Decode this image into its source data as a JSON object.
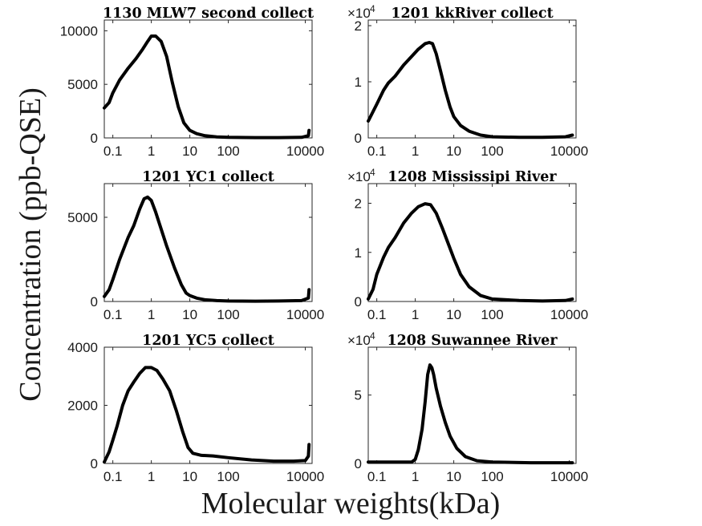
{
  "figure": {
    "ylabel": "Concentration (ppb-QSE)",
    "xlabel": "Molecular weights(kDa)"
  },
  "chart_data": [
    {
      "type": "line",
      "title": "1130 MLW7 second collect",
      "x_scale": "log",
      "xlim": [
        0.06,
        15000
      ],
      "ylim": [
        0,
        11000
      ],
      "x_ticks": [
        0.1,
        1,
        10,
        100,
        10000
      ],
      "x_tick_labels": [
        "0.1",
        "1",
        "10",
        "100",
        "10000"
      ],
      "y_ticks": [
        0,
        5000,
        10000
      ],
      "y_tick_labels": [
        "0",
        "5000",
        "10000"
      ],
      "y_multiplier": "",
      "color": "#000000",
      "x": [
        0.06,
        0.08,
        0.1,
        0.15,
        0.25,
        0.4,
        0.6,
        0.8,
        1.0,
        1.3,
        1.8,
        2.5,
        3.5,
        5,
        7,
        10,
        15,
        25,
        50,
        100,
        500,
        2000,
        8000,
        12000,
        12500
      ],
      "y": [
        2800,
        3300,
        4200,
        5400,
        6500,
        7400,
        8300,
        9000,
        9500,
        9500,
        9000,
        7600,
        5200,
        2900,
        1400,
        700,
        400,
        200,
        100,
        50,
        30,
        30,
        50,
        200,
        700
      ]
    },
    {
      "type": "line",
      "title": "1201 kkRiver collect",
      "x_scale": "log",
      "xlim": [
        0.06,
        15000
      ],
      "ylim": [
        0,
        2.1
      ],
      "x_ticks": [
        0.1,
        1,
        10,
        100,
        10000
      ],
      "x_tick_labels": [
        "0.1",
        "1",
        "10",
        "100",
        "10000"
      ],
      "y_ticks": [
        0,
        1,
        2
      ],
      "y_tick_labels": [
        "0",
        "1",
        "2"
      ],
      "y_multiplier": "×10",
      "y_multiplier_exp": "4",
      "color": "#000000",
      "x": [
        0.06,
        0.1,
        0.15,
        0.2,
        0.3,
        0.5,
        0.8,
        1.2,
        1.8,
        2.3,
        2.8,
        3.5,
        4.5,
        6,
        8,
        10,
        15,
        25,
        50,
        100,
        500,
        2000,
        8000,
        12000
      ],
      "y": [
        0.3,
        0.6,
        0.85,
        0.98,
        1.1,
        1.3,
        1.45,
        1.58,
        1.68,
        1.7,
        1.68,
        1.5,
        1.2,
        0.85,
        0.55,
        0.38,
        0.22,
        0.12,
        0.05,
        0.02,
        0.01,
        0.01,
        0.02,
        0.05
      ]
    },
    {
      "type": "line",
      "title": "1201 YC1 collect",
      "x_scale": "log",
      "xlim": [
        0.06,
        15000
      ],
      "ylim": [
        0,
        7000
      ],
      "x_ticks": [
        0.1,
        1,
        10,
        100,
        10000
      ],
      "x_tick_labels": [
        "0.1",
        "1",
        "10",
        "100",
        "10000"
      ],
      "y_ticks": [
        0,
        5000
      ],
      "y_tick_labels": [
        "0",
        "5000"
      ],
      "y_multiplier": "",
      "color": "#000000",
      "x": [
        0.06,
        0.08,
        0.1,
        0.15,
        0.25,
        0.35,
        0.5,
        0.65,
        0.8,
        1.0,
        1.3,
        1.8,
        2.5,
        4,
        6,
        8,
        10,
        15,
        25,
        50,
        100,
        500,
        2000,
        8000,
        12000,
        12500
      ],
      "y": [
        300,
        700,
        1300,
        2500,
        3800,
        4500,
        5500,
        6100,
        6200,
        6000,
        5300,
        4300,
        3300,
        2000,
        1000,
        500,
        350,
        200,
        100,
        50,
        30,
        20,
        30,
        50,
        200,
        700
      ]
    },
    {
      "type": "line",
      "title": "1208 Mississipi River",
      "x_scale": "log",
      "xlim": [
        0.06,
        15000
      ],
      "ylim": [
        0,
        2.4
      ],
      "x_ticks": [
        0.1,
        1,
        10,
        100,
        10000
      ],
      "x_tick_labels": [
        "0.1",
        "1",
        "10",
        "100",
        "10000"
      ],
      "y_ticks": [
        0,
        1,
        2
      ],
      "y_tick_labels": [
        "0",
        "1",
        "2"
      ],
      "y_multiplier": "×10",
      "y_multiplier_exp": "4",
      "color": "#000000",
      "x": [
        0.06,
        0.08,
        0.1,
        0.15,
        0.2,
        0.3,
        0.5,
        0.8,
        1.2,
        1.8,
        2.5,
        3.5,
        5,
        7,
        10,
        15,
        25,
        50,
        100,
        500,
        2000,
        8000,
        12000
      ],
      "y": [
        0.05,
        0.25,
        0.55,
        0.9,
        1.1,
        1.3,
        1.6,
        1.8,
        1.93,
        1.99,
        1.97,
        1.8,
        1.5,
        1.2,
        0.88,
        0.55,
        0.3,
        0.12,
        0.05,
        0.02,
        0.01,
        0.02,
        0.05
      ]
    },
    {
      "type": "line",
      "title": "1201 YC5 collect",
      "x_scale": "log",
      "xlim": [
        0.06,
        15000
      ],
      "ylim": [
        0,
        4000
      ],
      "x_ticks": [
        0.1,
        1,
        10,
        100,
        10000
      ],
      "x_tick_labels": [
        "0.1",
        "1",
        "10",
        "100",
        "10000"
      ],
      "y_ticks": [
        0,
        2000,
        4000
      ],
      "y_tick_labels": [
        "0",
        "2000",
        "4000"
      ],
      "y_multiplier": "",
      "color": "#000000",
      "x": [
        0.06,
        0.08,
        0.1,
        0.13,
        0.18,
        0.25,
        0.35,
        0.5,
        0.7,
        1.0,
        1.4,
        2.0,
        3.0,
        4.5,
        6.5,
        9,
        12,
        20,
        40,
        100,
        400,
        1500,
        5000,
        10000,
        12000,
        12500
      ],
      "y": [
        50,
        400,
        800,
        1300,
        2000,
        2500,
        2800,
        3100,
        3300,
        3300,
        3200,
        2900,
        2500,
        1800,
        1100,
        550,
        350,
        280,
        260,
        200,
        120,
        80,
        80,
        100,
        250,
        650
      ]
    },
    {
      "type": "line",
      "title": "1208 Suwannee River",
      "x_scale": "log",
      "xlim": [
        0.06,
        15000
      ],
      "ylim": [
        0,
        8.5
      ],
      "x_ticks": [
        0.1,
        1,
        10,
        100,
        10000
      ],
      "x_tick_labels": [
        "0.1",
        "1",
        "10",
        "100",
        "10000"
      ],
      "y_ticks": [
        0,
        5
      ],
      "y_tick_labels": [
        "0",
        "5"
      ],
      "y_multiplier": "×10",
      "y_multiplier_exp": "4",
      "color": "#000000",
      "x": [
        0.06,
        0.2,
        0.5,
        0.8,
        1.0,
        1.2,
        1.5,
        1.8,
        2.1,
        2.4,
        2.7,
        3.0,
        3.5,
        4.5,
        6,
        8,
        12,
        20,
        40,
        100,
        1000,
        12000
      ],
      "y": [
        0.1,
        0.1,
        0.1,
        0.1,
        0.3,
        1.0,
        2.5,
        4.5,
        6.5,
        7.2,
        7.0,
        6.5,
        5.5,
        4.2,
        3.0,
        2.0,
        1.1,
        0.5,
        0.2,
        0.1,
        0.05,
        0.05
      ]
    }
  ]
}
